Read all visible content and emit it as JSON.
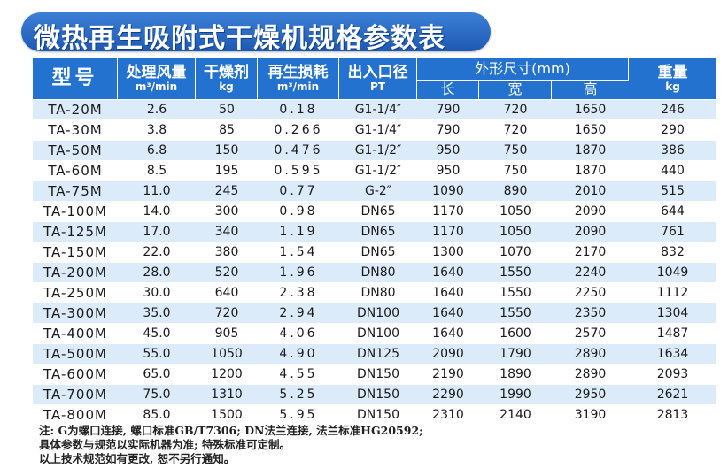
{
  "title": "微热再生吸附式干燥机规格参数表",
  "headers": {
    "model": "型号",
    "flow": "处理风量",
    "flow_unit": "m³/min",
    "desiccant": "干燥剂",
    "desiccant_unit": "kg",
    "regen": "再生损耗",
    "regen_unit": "m³/min",
    "port": "出入口径",
    "port_unit": "PT",
    "dims": "外形尺寸(mm)",
    "length": "长",
    "width": "宽",
    "height": "高",
    "weight": "重量",
    "weight_unit": "kg"
  },
  "rows": [
    {
      "model": "TA-20M",
      "flow": "2.6",
      "desiccant": "50",
      "regen": "0.18",
      "port": "G1-1/4″",
      "length": "790",
      "width": "720",
      "height": "1650",
      "weight": "246"
    },
    {
      "model": "TA-30M",
      "flow": "3.8",
      "desiccant": "85",
      "regen": "0.266",
      "port": "G1-1/4″",
      "length": "790",
      "width": "720",
      "height": "1650",
      "weight": "290"
    },
    {
      "model": "TA-50M",
      "flow": "6.8",
      "desiccant": "150",
      "regen": "0.476",
      "port": "G1-1/2″",
      "length": "950",
      "width": "750",
      "height": "1870",
      "weight": "386"
    },
    {
      "model": "TA-60M",
      "flow": "8.5",
      "desiccant": "195",
      "regen": "0.595",
      "port": "G1-1/2″",
      "length": "950",
      "width": "750",
      "height": "1870",
      "weight": "440"
    },
    {
      "model": "TA-75M",
      "flow": "11.0",
      "desiccant": "245",
      "regen": "0.77",
      "port": "G-2″",
      "length": "1090",
      "width": "890",
      "height": "2010",
      "weight": "515"
    },
    {
      "model": "TA-100M",
      "flow": "14.0",
      "desiccant": "300",
      "regen": "0.98",
      "port": "DN65",
      "length": "1170",
      "width": "1050",
      "height": "2090",
      "weight": "644"
    },
    {
      "model": "TA-125M",
      "flow": "17.0",
      "desiccant": "340",
      "regen": "1.19",
      "port": "DN65",
      "length": "1170",
      "width": "1050",
      "height": "2090",
      "weight": "761"
    },
    {
      "model": "TA-150M",
      "flow": "22.0",
      "desiccant": "380",
      "regen": "1.54",
      "port": "DN65",
      "length": "1300",
      "width": "1070",
      "height": "2170",
      "weight": "832"
    },
    {
      "model": "TA-200M",
      "flow": "28.0",
      "desiccant": "520",
      "regen": "1.96",
      "port": "DN80",
      "length": "1640",
      "width": "1550",
      "height": "2240",
      "weight": "1049"
    },
    {
      "model": "TA-250M",
      "flow": "30.0",
      "desiccant": "640",
      "regen": "2.38",
      "port": "DN80",
      "length": "1640",
      "width": "1550",
      "height": "2250",
      "weight": "1112"
    },
    {
      "model": "TA-300M",
      "flow": "35.0",
      "desiccant": "720",
      "regen": "2.94",
      "port": "DN100",
      "length": "1640",
      "width": "1550",
      "height": "2350",
      "weight": "1304"
    },
    {
      "model": "TA-400M",
      "flow": "45.0",
      "desiccant": "905",
      "regen": "4.06",
      "port": "DN100",
      "length": "1640",
      "width": "1600",
      "height": "2570",
      "weight": "1487"
    },
    {
      "model": "TA-500M",
      "flow": "55.0",
      "desiccant": "1050",
      "regen": "4.90",
      "port": "DN125",
      "length": "2090",
      "width": "1790",
      "height": "2890",
      "weight": "1634"
    },
    {
      "model": "TA-600M",
      "flow": "65.0",
      "desiccant": "1200",
      "regen": "4.55",
      "port": "DN150",
      "length": "2190",
      "width": "1890",
      "height": "2890",
      "weight": "2093"
    },
    {
      "model": "TA-700M",
      "flow": "75.0",
      "desiccant": "1310",
      "regen": "5.25",
      "port": "DN150",
      "length": "2290",
      "width": "1990",
      "height": "2950",
      "weight": "2621"
    },
    {
      "model": "TA-800M",
      "flow": "85.0",
      "desiccant": "1500",
      "regen": "5.95",
      "port": "DN150",
      "length": "2310",
      "width": "2140",
      "height": "3190",
      "weight": "2813"
    }
  ],
  "notes": [
    "注: G为螺口连接, 螺口标准GB/T7306; DN法兰连接, 法兰标准HG20592;",
    "具体参数与规范以实际机器为准; 特殊标准可定制。",
    "以上技术规范如有更改, 恕不另行通知。"
  ],
  "colors": {
    "header_bg": "#2372cf",
    "stripe": "#dcebf9",
    "title_bg": "#2a6cc6"
  }
}
